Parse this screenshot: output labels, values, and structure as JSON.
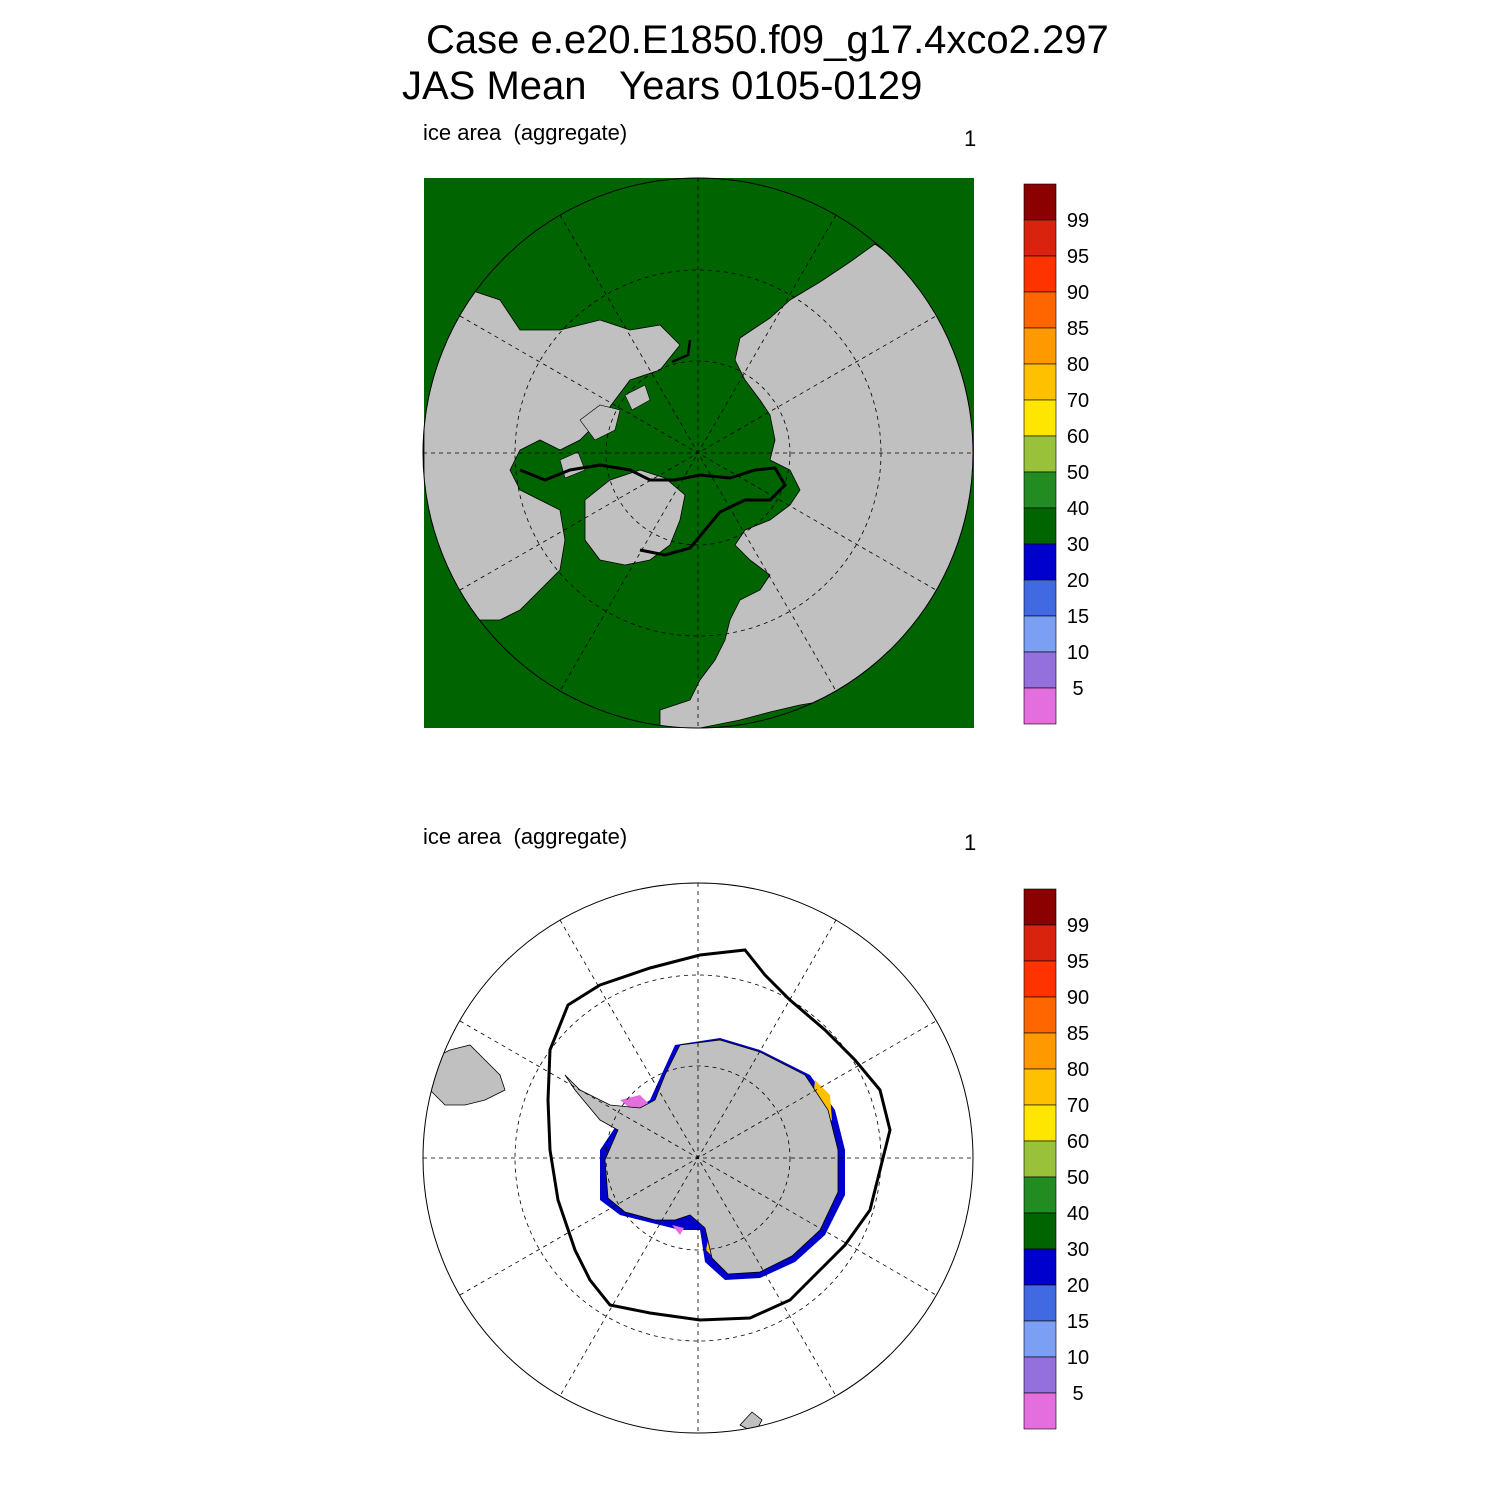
{
  "header": {
    "title_line1": "Case e.e20.E1850.f09_g17.4xco2.297",
    "title_line2": "JAS Mean   Years 0105-0129"
  },
  "panels": [
    {
      "hemisphere": "north",
      "label": "ice area  (aggregate)",
      "number": "1"
    },
    {
      "hemisphere": "south",
      "label": "ice area  (aggregate)",
      "number": "1"
    }
  ],
  "colorbar": {
    "labels": [
      "99",
      "95",
      "90",
      "85",
      "80",
      "70",
      "60",
      "50",
      "40",
      "30",
      "20",
      "15",
      "10",
      "5"
    ],
    "colors": [
      "#8b0000",
      "#d9230f",
      "#ff3300",
      "#ff6600",
      "#ff9900",
      "#ffc000",
      "#ffe600",
      "#99c23a",
      "#228b22",
      "#006400",
      "#0000cd",
      "#4169e1",
      "#7b9ff2",
      "#9370db",
      "#e36fde"
    ]
  },
  "colors": {
    "land": "#c0c0c0",
    "north_ocean": "#006400",
    "south_ocean": "#ffffff"
  }
}
